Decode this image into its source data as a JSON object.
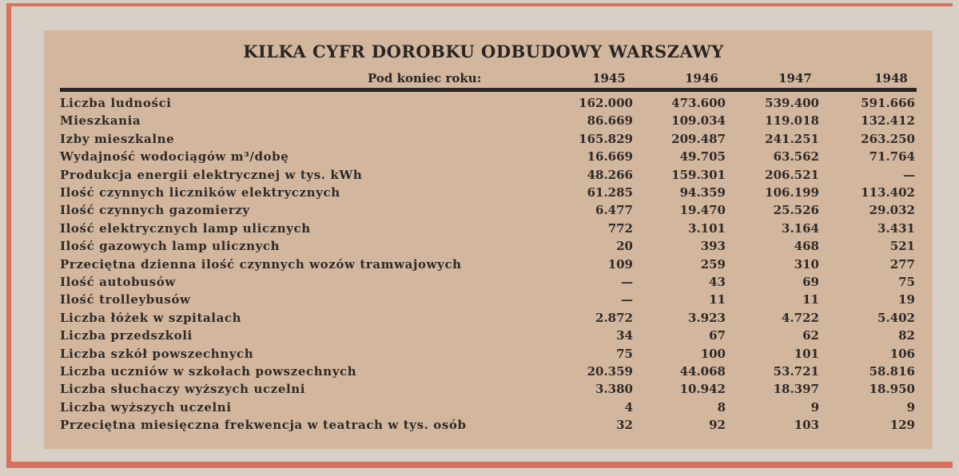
{
  "title": "KILKA CYFR DOROBKU ODBUDOWY WARSZAWY",
  "header": {
    "label": "Pod koniec roku:",
    "years": [
      "1945",
      "1946",
      "1947",
      "1948"
    ]
  },
  "rows": [
    {
      "label": "Liczba ludności",
      "values": [
        "162.000",
        "473.600",
        "539.400",
        "591.666"
      ]
    },
    {
      "label": "Mieszkania",
      "values": [
        "86.669",
        "109.034",
        "119.018",
        "132.412"
      ]
    },
    {
      "label": "Izby mieszkalne",
      "values": [
        "165.829",
        "209.487",
        "241.251",
        "263.250"
      ]
    },
    {
      "label": "Wydajność wodociągów m³/dobę",
      "values": [
        "16.669",
        "49.705",
        "63.562",
        "71.764"
      ]
    },
    {
      "label": "Produkcja energii elektrycznej w tys. kWh",
      "values": [
        "48.266",
        "159.301",
        "206.521",
        "—"
      ]
    },
    {
      "label": "Ilość czynnych liczników elektrycznych",
      "values": [
        "61.285",
        "94.359",
        "106.199",
        "113.402"
      ]
    },
    {
      "label": "Ilość czynnych gazomierzy",
      "values": [
        "6.477",
        "19.470",
        "25.526",
        "29.032"
      ]
    },
    {
      "label": "Ilość elektrycznych lamp ulicznych",
      "values": [
        "772",
        "3.101",
        "3.164",
        "3.431"
      ]
    },
    {
      "label": "Ilość gazowych lamp ulicznych",
      "values": [
        "20",
        "393",
        "468",
        "521"
      ]
    },
    {
      "label": "Przeciętna dzienna ilość czynnych wozów tramwajowych",
      "values": [
        "109",
        "259",
        "310",
        "277"
      ]
    },
    {
      "label": "Ilość autobusów",
      "values": [
        "—",
        "43",
        "69",
        "75"
      ]
    },
    {
      "label": "Ilość trolleybusów",
      "values": [
        "—",
        "11",
        "11",
        "19"
      ]
    },
    {
      "label": "Liczba łóżek w szpitalach",
      "values": [
        "2.872",
        "3.923",
        "4.722",
        "5.402"
      ]
    },
    {
      "label": "Liczba przedszkoli",
      "values": [
        "34",
        "67",
        "62",
        "82"
      ]
    },
    {
      "label": "Liczba szkół powszechnych",
      "values": [
        "75",
        "100",
        "101",
        "106"
      ]
    },
    {
      "label": "Liczba uczniów w szkołach powszechnych",
      "values": [
        "20.359",
        "44.068",
        "53.721",
        "58.816"
      ]
    },
    {
      "label": "Liczba słuchaczy wyższych uczelni",
      "values": [
        "3.380",
        "10.942",
        "18.397",
        "18.950"
      ]
    },
    {
      "label": "Liczba wyższych uczelni",
      "values": [
        "4",
        "8",
        "9",
        "9"
      ]
    },
    {
      "label": "Przeciętna miesięczna frekwencja w teatrach w tys. osób",
      "values": [
        "32",
        "92",
        "103",
        "129"
      ]
    }
  ]
}
